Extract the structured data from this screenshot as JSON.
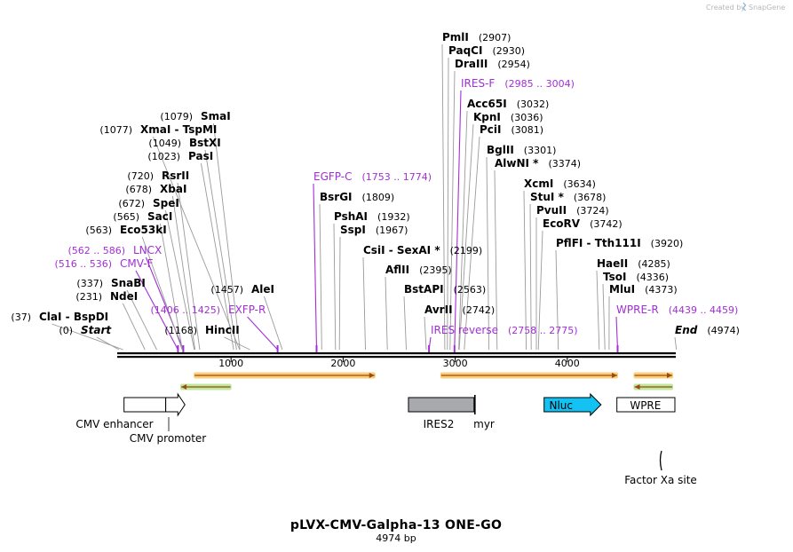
{
  "credit": {
    "created_by": "Created by",
    "brand": "SnapGene",
    "logo_icon": "snapgene-logo-icon"
  },
  "title": "pLVX-CMV-Galpha-13 ONE-GO",
  "subtitle": "4974 bp",
  "backbone": {
    "length": 4974,
    "ticks": [
      "1000",
      "2000",
      "3000",
      "4000"
    ]
  },
  "sites": [
    {
      "kind": "enzyme",
      "name": "ClaI",
      "sep": "-",
      "name2": "BspDI",
      "pos": 37,
      "pos_label": "(37)"
    },
    {
      "kind": "enzyme",
      "name": "Start",
      "pos": 0,
      "pos_label": "(0)",
      "italic": true
    },
    {
      "kind": "enzyme",
      "name": "NdeI",
      "pos": 231,
      "pos_label": "(231)"
    },
    {
      "kind": "enzyme",
      "name": "SnaBI",
      "pos": 337,
      "pos_label": "(337)"
    },
    {
      "kind": "primer",
      "name": "CMV-F",
      "pos": 526,
      "pos_label": "(516 .. 536)"
    },
    {
      "kind": "primer",
      "name": "LNCX",
      "pos": 574,
      "pos_label": "(562 .. 586)"
    },
    {
      "kind": "enzyme",
      "name": "Eco53kI",
      "pos": 563,
      "pos_label": "(563)"
    },
    {
      "kind": "enzyme",
      "name": "SacI",
      "pos": 565,
      "pos_label": "(565)"
    },
    {
      "kind": "enzyme",
      "name": "SpeI",
      "pos": 672,
      "pos_label": "(672)"
    },
    {
      "kind": "enzyme",
      "name": "XbaI",
      "pos": 678,
      "pos_label": "(678)"
    },
    {
      "kind": "enzyme",
      "name": "RsrII",
      "pos": 720,
      "pos_label": "(720)"
    },
    {
      "kind": "enzyme",
      "name": "PasI",
      "pos": 1023,
      "pos_label": "(1023)"
    },
    {
      "kind": "enzyme",
      "name": "BstXI",
      "pos": 1049,
      "pos_label": "(1049)"
    },
    {
      "kind": "enzyme",
      "name": "XmaI",
      "sep": "-",
      "name2": "TspMI",
      "pos": 1077,
      "pos_label": "(1077)"
    },
    {
      "kind": "enzyme",
      "name": "SmaI",
      "pos": 1079,
      "pos_label": "(1079)"
    },
    {
      "kind": "enzyme",
      "name": "HincII",
      "pos": 1168,
      "pos_label": "(1168)"
    },
    {
      "kind": "primer",
      "name": "EXFP-R",
      "pos": 1415,
      "pos_label": "(1406 .. 1425)"
    },
    {
      "kind": "enzyme",
      "name": "AleI",
      "pos": 1457,
      "pos_label": "(1457)"
    },
    {
      "kind": "primer",
      "name": "EGFP-C",
      "pos": 1763,
      "pos_label": "(1753 .. 1774)"
    },
    {
      "kind": "enzyme",
      "name": "BsrGI",
      "pos": 1809,
      "pos_label": "(1809)"
    },
    {
      "kind": "enzyme",
      "name": "PshAI",
      "pos": 1932,
      "pos_label": "(1932)"
    },
    {
      "kind": "enzyme",
      "name": "SspI",
      "pos": 1967,
      "pos_label": "(1967)"
    },
    {
      "kind": "enzyme",
      "name": "CsiI",
      "sep": "-",
      "name2": "SexAI *",
      "pos": 2199,
      "pos_label": "(2199)"
    },
    {
      "kind": "enzyme",
      "name": "AflII",
      "pos": 2395,
      "pos_label": "(2395)"
    },
    {
      "kind": "enzyme",
      "name": "BstAPI",
      "pos": 2563,
      "pos_label": "(2563)"
    },
    {
      "kind": "enzyme",
      "name": "AvrII",
      "pos": 2742,
      "pos_label": "(2742)"
    },
    {
      "kind": "primer",
      "name": "IRES reverse",
      "pos": 2766,
      "pos_label": "(2758 .. 2775)"
    },
    {
      "kind": "enzyme",
      "name": "PmlI",
      "pos": 2907,
      "pos_label": "(2907)"
    },
    {
      "kind": "enzyme",
      "name": "PaqCI",
      "pos": 2930,
      "pos_label": "(2930)"
    },
    {
      "kind": "enzyme",
      "name": "DraIII",
      "pos": 2954,
      "pos_label": "(2954)"
    },
    {
      "kind": "primer",
      "name": "IRES-F",
      "pos": 2994,
      "pos_label": "(2985 .. 3004)"
    },
    {
      "kind": "enzyme",
      "name": "Acc65I",
      "pos": 3032,
      "pos_label": "(3032)"
    },
    {
      "kind": "enzyme",
      "name": "KpnI",
      "pos": 3036,
      "pos_label": "(3036)"
    },
    {
      "kind": "enzyme",
      "name": "PciI",
      "pos": 3081,
      "pos_label": "(3081)"
    },
    {
      "kind": "enzyme",
      "name": "BglII",
      "pos": 3301,
      "pos_label": "(3301)"
    },
    {
      "kind": "enzyme",
      "name": "AlwNI *",
      "pos": 3374,
      "pos_label": "(3374)"
    },
    {
      "kind": "enzyme",
      "name": "XcmI",
      "pos": 3634,
      "pos_label": "(3634)"
    },
    {
      "kind": "enzyme",
      "name": "StuI *",
      "pos": 3678,
      "pos_label": "(3678)"
    },
    {
      "kind": "enzyme",
      "name": "PvuII",
      "pos": 3724,
      "pos_label": "(3724)"
    },
    {
      "kind": "enzyme",
      "name": "EcoRV",
      "pos": 3742,
      "pos_label": "(3742)"
    },
    {
      "kind": "enzyme",
      "name": "PflFI",
      "sep": "-",
      "name2": "Tth111I",
      "pos": 3920,
      "pos_label": "(3920)"
    },
    {
      "kind": "enzyme",
      "name": "HaeII",
      "pos": 4285,
      "pos_label": "(4285)"
    },
    {
      "kind": "enzyme",
      "name": "TsoI",
      "pos": 4336,
      "pos_label": "(4336)"
    },
    {
      "kind": "enzyme",
      "name": "MluI",
      "pos": 4373,
      "pos_label": "(4373)"
    },
    {
      "kind": "primer",
      "name": "WPRE-R",
      "pos": 4449,
      "pos_label": "(4439 .. 4459)"
    },
    {
      "kind": "enzyme",
      "name": "End",
      "pos": 4974,
      "pos_label": "(4974)",
      "italic": true
    }
  ],
  "orfs": [
    {
      "name": "orf-forward-1",
      "start": 675,
      "end": 2280,
      "strand": "+"
    },
    {
      "name": "orf-reverse-1",
      "start": 555,
      "end": 995,
      "strand": "-"
    },
    {
      "name": "orf-forward-2",
      "start": 2875,
      "end": 4445,
      "strand": "+"
    },
    {
      "name": "orf-forward-3",
      "start": 4600,
      "end": 4974,
      "strand": "+"
    },
    {
      "name": "orf-reverse-2",
      "start": 4600,
      "end": 4974,
      "strand": "-"
    }
  ],
  "features": [
    {
      "name": "CMV enhancer",
      "start": 37,
      "end": 416,
      "type": "enhancer"
    },
    {
      "name": "CMV promoter",
      "start": 417,
      "end": 620,
      "type": "promoter"
    },
    {
      "name": "IRES2",
      "start": 2575,
      "end": 3160,
      "type": "misc"
    },
    {
      "name": "myr",
      "start": 3175,
      "end": 3190,
      "type": "sig"
    },
    {
      "name": "Nluc",
      "start": 3920,
      "end": 4428,
      "type": "cds"
    },
    {
      "name": "WPRE",
      "start": 4435,
      "end": 5032,
      "type": "misc"
    },
    {
      "name": "Factor Xa site",
      "start": 4873,
      "end": 4880,
      "type": "site"
    }
  ],
  "colors": {
    "enzyme": "#000000",
    "primer": "#a12fd6",
    "orf_line": "#9c4a12",
    "orf_halo_forward": "#f9c96b",
    "orf_halo_reverse": "#b7e594",
    "nluc": "#13c1f2",
    "ires": "#a7a9ad",
    "leader_line": "#9a9a9a"
  }
}
